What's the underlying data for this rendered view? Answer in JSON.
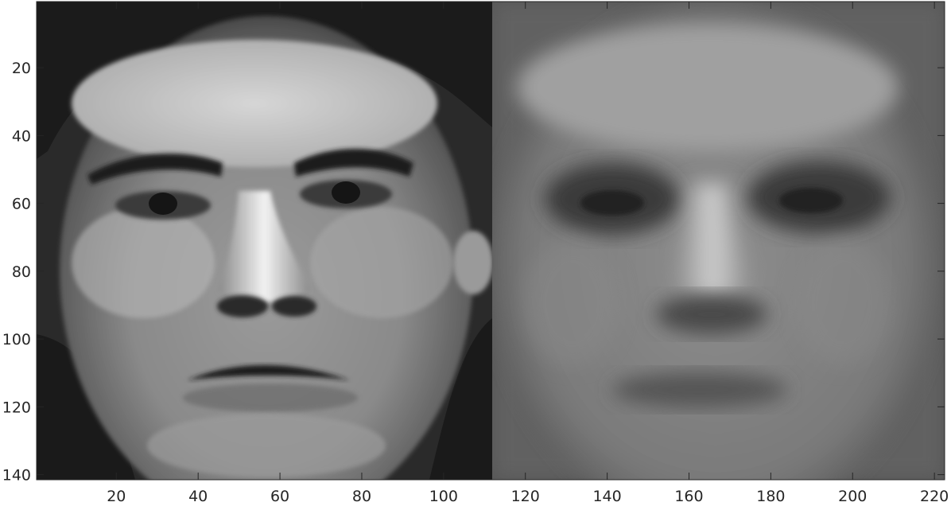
{
  "chart_data": {
    "type": "heatmap",
    "title": "",
    "xlabel": "",
    "ylabel": "",
    "xlim": [
      0.5,
      222.5
    ],
    "ylim": [
      0.5,
      141.5
    ],
    "y_reversed": true,
    "colormap": "gray",
    "x_ticks": [
      20,
      40,
      60,
      80,
      100,
      120,
      140,
      160,
      180,
      200,
      220
    ],
    "y_ticks": [
      20,
      40,
      60,
      80,
      100,
      120,
      140
    ],
    "x_tick_labels": [
      "20",
      "40",
      "60",
      "80",
      "100",
      "120",
      "140",
      "160",
      "180",
      "200",
      "220"
    ],
    "y_tick_labels": [
      "20",
      "40",
      "60",
      "80",
      "100",
      "120",
      "140"
    ],
    "panels": [
      {
        "content": "face-image",
        "x_range": [
          0.5,
          111.5
        ]
      },
      {
        "content": "blurred-face-image",
        "x_range": [
          111.5,
          222.5
        ]
      }
    ],
    "colors": {
      "axis": "#262626",
      "background": "#ffffff"
    }
  }
}
